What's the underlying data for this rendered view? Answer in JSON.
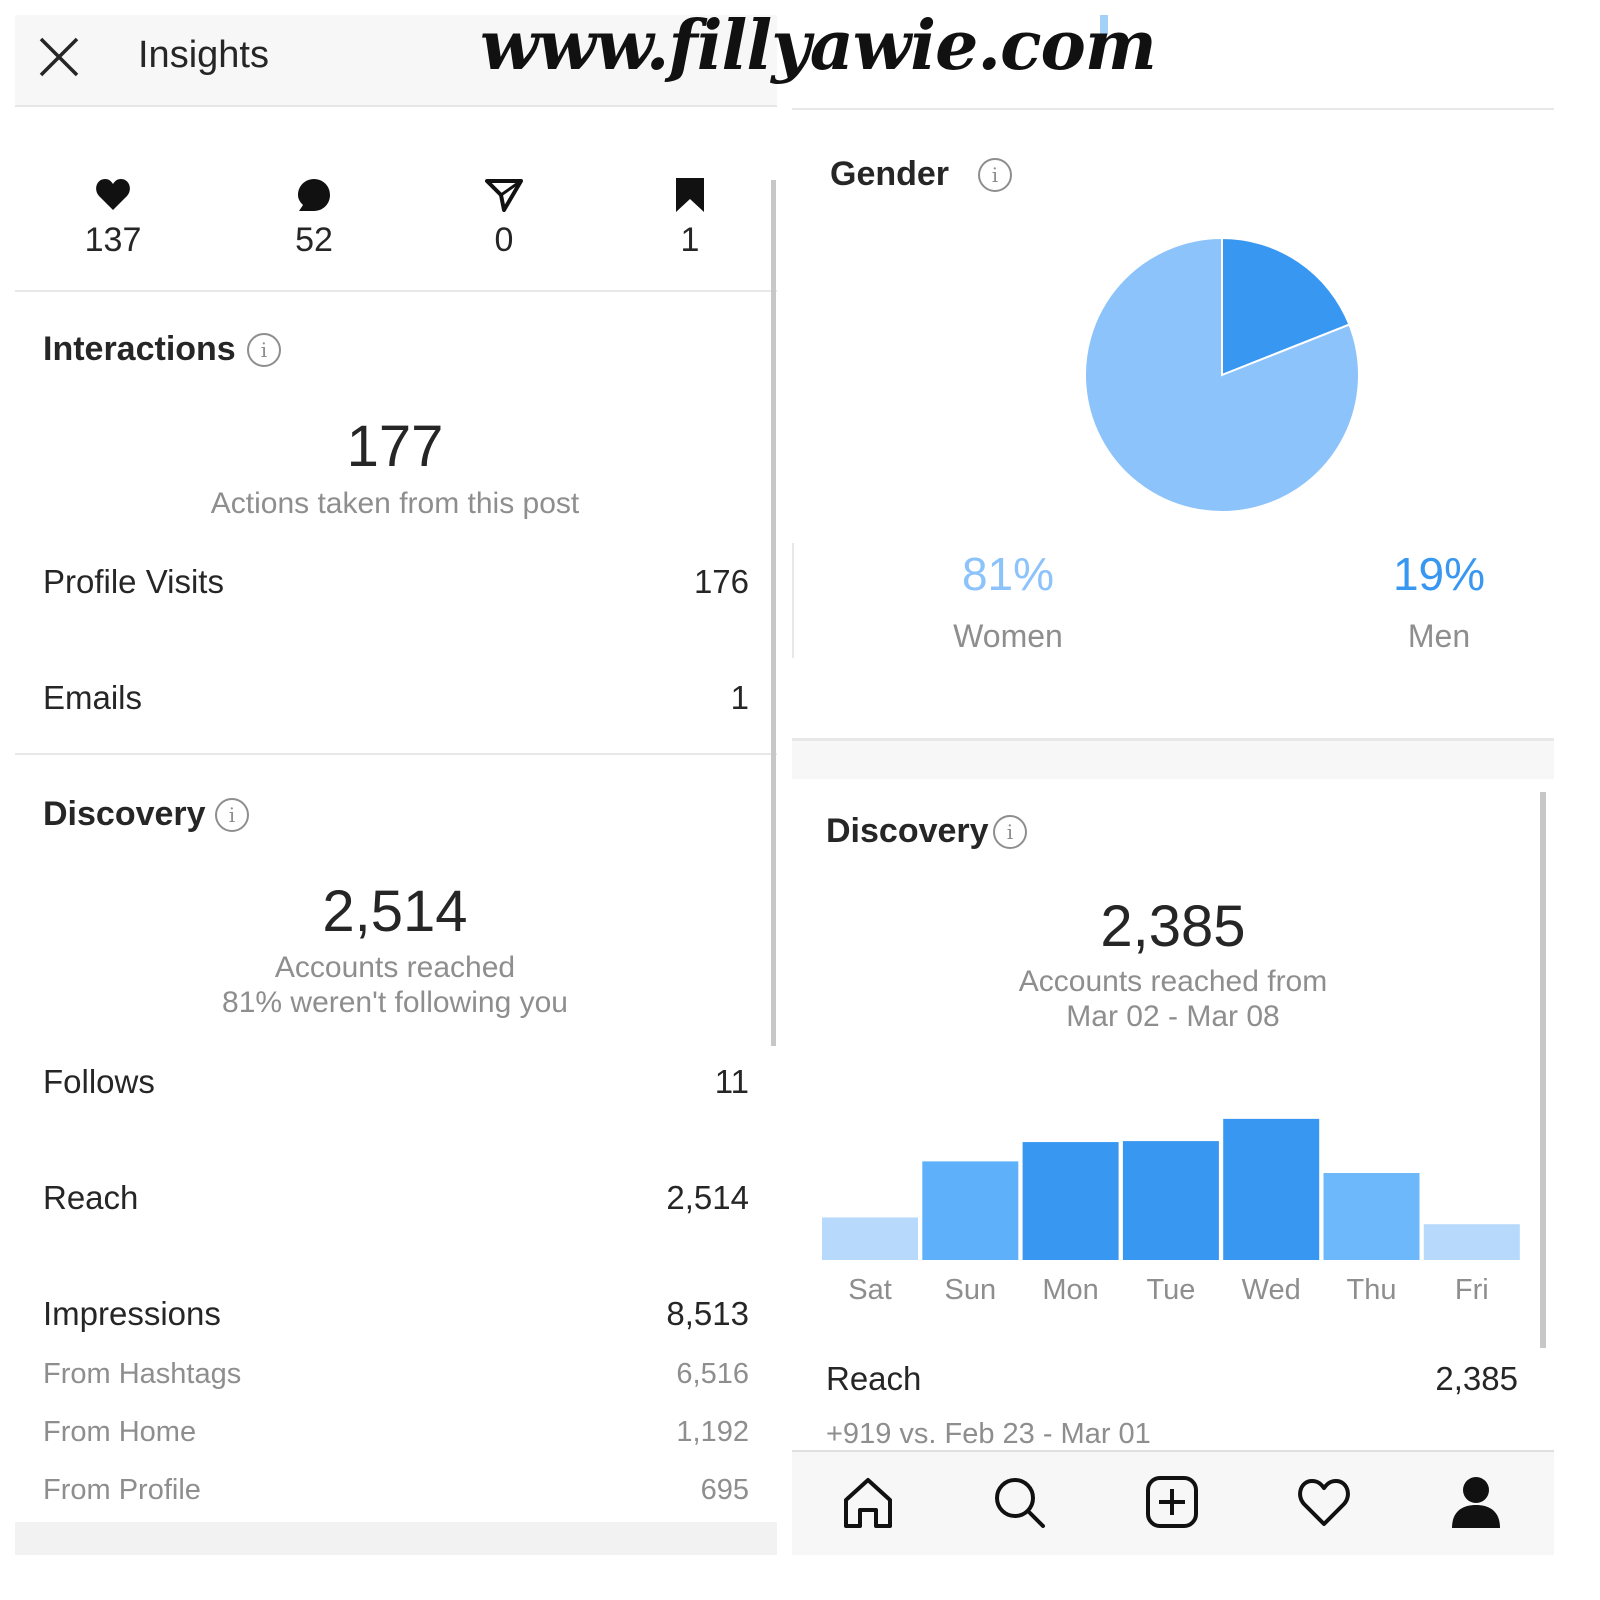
{
  "watermark": "www.fillyawie.com",
  "left": {
    "header": {
      "title": "Insights"
    },
    "stats": [
      {
        "icon": "heart-icon",
        "value": "137"
      },
      {
        "icon": "comment-icon",
        "value": "52"
      },
      {
        "icon": "send-icon",
        "value": "0"
      },
      {
        "icon": "bookmark-icon",
        "value": "1"
      }
    ],
    "interactions": {
      "title": "Interactions",
      "total": "177",
      "subtitle": "Actions taken from this post",
      "rows": [
        {
          "label": "Profile Visits",
          "value": "176"
        },
        {
          "label": "Emails",
          "value": "1"
        }
      ]
    },
    "discovery": {
      "title": "Discovery",
      "total": "2,514",
      "subtitle": "Accounts reached",
      "note": "81% weren't following you",
      "rows": [
        {
          "label": "Follows",
          "value": "11"
        },
        {
          "label": "Reach",
          "value": "2,514"
        },
        {
          "label": "Impressions",
          "value": "8,513"
        }
      ],
      "sub_rows": [
        {
          "label": "From Hashtags",
          "value": "6,516"
        },
        {
          "label": "From Home",
          "value": "1,192"
        },
        {
          "label": "From Profile",
          "value": "695"
        }
      ]
    }
  },
  "right": {
    "gender": {
      "title": "Gender",
      "women": {
        "percent": "81%",
        "label": "Women",
        "color": "#8cc3fa"
      },
      "men": {
        "percent": "19%",
        "label": "Men",
        "color": "#3897f0"
      }
    },
    "discovery": {
      "title": "Discovery",
      "total": "2,385",
      "subtitle_line1": "Accounts reached from",
      "subtitle_line2": "Mar 02 - Mar 08",
      "reach_label": "Reach",
      "reach_value": "2,385",
      "comparison": "+919 vs. Feb 23 - Mar 01"
    },
    "nav": [
      "home-icon",
      "search-icon",
      "add-post-icon",
      "activity-heart-icon",
      "profile-icon"
    ]
  },
  "chart_data": [
    {
      "type": "pie",
      "categories": [
        "Women",
        "Men"
      ],
      "values": [
        81,
        19
      ],
      "colors": [
        "#8cc3fa",
        "#3897f0"
      ]
    },
    {
      "type": "bar",
      "categories": [
        "Sat",
        "Sun",
        "Mon",
        "Tue",
        "Wed",
        "Thu",
        "Fri"
      ],
      "values": [
        44,
        102,
        122,
        123,
        146,
        90,
        37
      ],
      "colors": [
        "#b6d9fc",
        "#5eb0fb",
        "#3897f0",
        "#3897f0",
        "#3897f0",
        "#6cb8fb",
        "#b6d9fc"
      ],
      "ylim": [
        0,
        150
      ]
    }
  ]
}
